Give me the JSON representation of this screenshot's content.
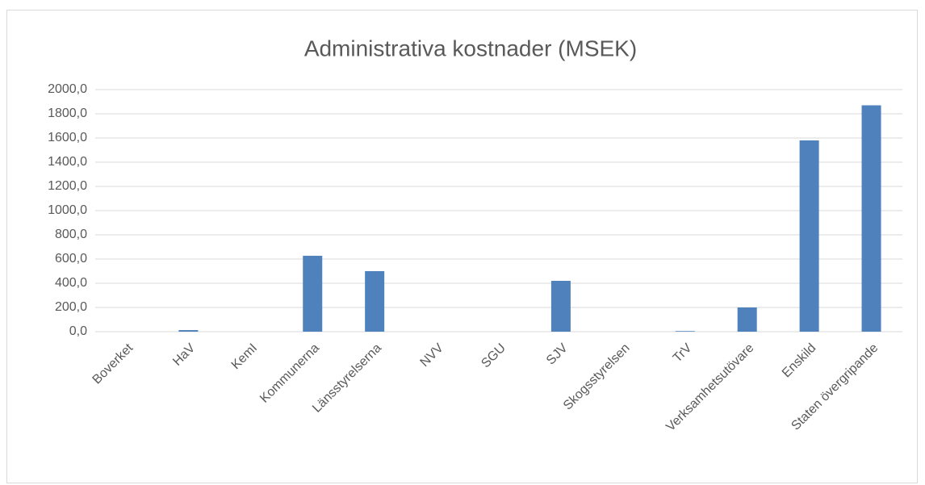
{
  "chart_data": {
    "type": "bar",
    "title": "Administrativa kostnader (MSEK)",
    "categories": [
      "Boverket",
      "HaV",
      "KemI",
      "Kommunerna",
      "Länsstyrelserna",
      "NVV",
      "SGU",
      "SJV",
      "Skogsstyrelsen",
      "TrV",
      "Verksamhetsutövare",
      "Enskild",
      "Staten övergripande"
    ],
    "values": [
      0,
      13,
      0,
      627,
      500,
      0,
      0,
      420,
      0,
      5,
      200,
      1580,
      1870
    ],
    "color": "#4f81bd",
    "ylim": [
      0,
      2000
    ],
    "yticks": [
      {
        "value": 0,
        "label": "0,0"
      },
      {
        "value": 200,
        "label": "200,0"
      },
      {
        "value": 400,
        "label": "400,0"
      },
      {
        "value": 600,
        "label": "600,0"
      },
      {
        "value": 800,
        "label": "800,0"
      },
      {
        "value": 1000,
        "label": "1000,0"
      },
      {
        "value": 1200,
        "label": "1200,0"
      },
      {
        "value": 1400,
        "label": "1400,0"
      },
      {
        "value": 1600,
        "label": "1600,0"
      },
      {
        "value": 1800,
        "label": "1800,0"
      },
      {
        "value": 2000,
        "label": "2000,0"
      }
    ],
    "grid": true
  }
}
